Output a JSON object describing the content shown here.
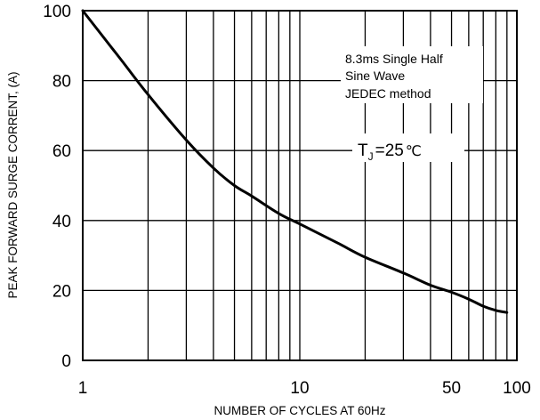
{
  "chart_data": {
    "type": "line",
    "title": "",
    "xlabel": "NUMBER OF CYCLES AT 60Hz",
    "ylabel": "PEAK FORWARD SURGE CORRENT, (A)",
    "x_scale": "log",
    "xlim": [
      1,
      100
    ],
    "ylim": [
      0,
      100
    ],
    "x_ticks": [
      {
        "value": 1,
        "label": "1"
      },
      {
        "value": 10,
        "label": "10"
      },
      {
        "value": 50,
        "label": "50"
      },
      {
        "value": 100,
        "label": "100"
      }
    ],
    "y_ticks": [
      {
        "value": 0,
        "label": "0"
      },
      {
        "value": 20,
        "label": "20"
      },
      {
        "value": 40,
        "label": "40"
      },
      {
        "value": 60,
        "label": "60"
      },
      {
        "value": 80,
        "label": "80"
      },
      {
        "value": 100,
        "label": "100"
      }
    ],
    "grid": true,
    "series": [
      {
        "name": "",
        "x": [
          1,
          1.5,
          2,
          3,
          4,
          5,
          6,
          8,
          10,
          15,
          20,
          30,
          40,
          50,
          60,
          70,
          80,
          90
        ],
        "y": [
          100,
          86,
          76,
          63,
          55,
          50,
          47,
          42,
          39,
          33.5,
          29.5,
          25,
          21.5,
          19.5,
          17.5,
          15.5,
          14.3,
          13.7
        ]
      }
    ],
    "annotation": {
      "lines": [
        "8.3ms Single Half",
        "Sine Wave",
        "JEDEC method"
      ]
    },
    "condition": {
      "symbol": "T",
      "subscript": "J",
      "value": "=25",
      "unit": "℃"
    }
  },
  "style": {
    "line_color": "#000000",
    "grid_color": "#000000",
    "background": "#ffffff"
  }
}
